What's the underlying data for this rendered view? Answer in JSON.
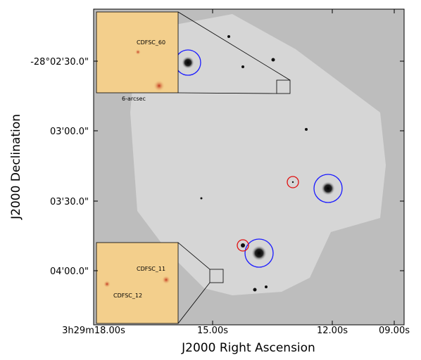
{
  "axes": {
    "x_label": "J2000 Right Ascension",
    "y_label": "J2000 Declination",
    "x_ticks": [
      "3h29m18.00s",
      "15.00s",
      "12.00s",
      "09.00s"
    ],
    "y_ticks": [
      "-28°02'30.0\"",
      "03'00.0\"",
      "03'30.0\"",
      "04'00.0\""
    ]
  },
  "insets": [
    {
      "labels": [
        "CDFSC_60"
      ],
      "scale_label": "6-arcsec"
    },
    {
      "labels": [
        "CDFSC_11",
        "CDFSC_12"
      ]
    }
  ]
}
